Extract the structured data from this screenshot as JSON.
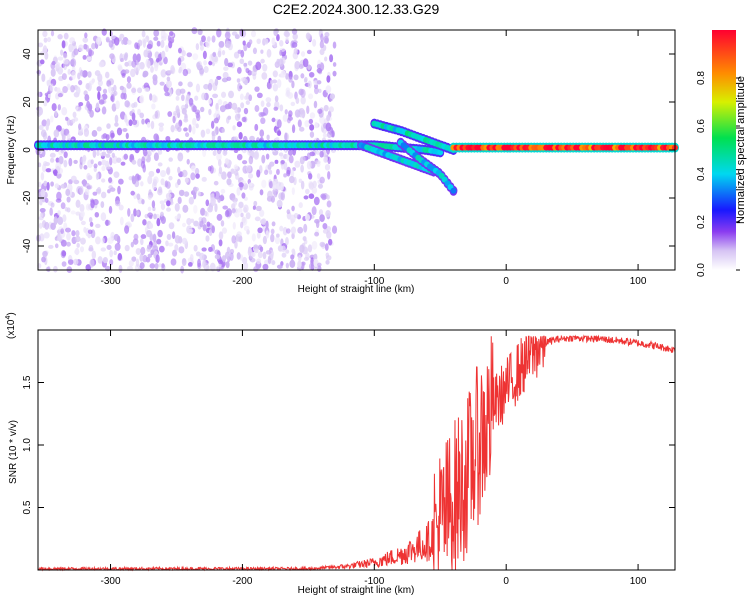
{
  "title": "C2E2.2024.300.12.33.G29",
  "chart_data": [
    {
      "type": "heatmap",
      "title": "C2E2.2024.300.12.33.G29",
      "xlabel": "Height of straight line (km)",
      "ylabel": "Frequency (Hz)",
      "xlim": [
        -355,
        128
      ],
      "ylim": [
        -50,
        50
      ],
      "xticks": [
        -300,
        -200,
        -100,
        0,
        100
      ],
      "yticks": [
        -40,
        -20,
        0,
        20,
        40
      ],
      "colorbar": {
        "label": "Normalized spectral amplitude",
        "range": [
          0,
          1
        ],
        "ticks": [
          "0.0",
          "0.2",
          "0.4",
          "0.6",
          "0.8"
        ],
        "colormap": "white-purple-blue-cyan-green-yellow-red"
      },
      "features": [
        {
          "name": "noise_region",
          "x_range": [
            -355,
            -130
          ],
          "freq_range": [
            -50,
            50
          ],
          "amplitude": 0.1
        },
        {
          "name": "main_trace",
          "x": [
            -355,
            -140,
            -120,
            -100,
            -80,
            -60,
            -50
          ],
          "freq": [
            2,
            2,
            2,
            2,
            1,
            0,
            -1
          ],
          "amplitude": 0.45
        },
        {
          "name": "descending_branch_1",
          "x": [
            -110,
            -90,
            -70,
            -55
          ],
          "freq": [
            2,
            -2,
            -6,
            -9
          ],
          "amplitude": 0.4
        },
        {
          "name": "descending_branch_2",
          "x": [
            -80,
            -65,
            -50,
            -40
          ],
          "freq": [
            3,
            -4,
            -10,
            -17
          ],
          "amplitude": 0.4
        },
        {
          "name": "upper_branch",
          "x": [
            -100,
            -80,
            -60,
            -40
          ],
          "freq": [
            11,
            8,
            4,
            0
          ],
          "amplitude": 0.45
        },
        {
          "name": "stable_trace",
          "x": [
            -40,
            0,
            50,
            100,
            128
          ],
          "freq": [
            1,
            1,
            1,
            1,
            1
          ],
          "amplitude": 0.95
        }
      ]
    },
    {
      "type": "line",
      "title": "",
      "xlabel": "Height of straight line (km)",
      "ylabel": "SNR (10 * v/v)",
      "multiplier": "(x10",
      "multiplier_exp": "4",
      "xlim": [
        -355,
        128
      ],
      "ylim": [
        0,
        1.92
      ],
      "xticks": [
        -300,
        -200,
        -100,
        0,
        100
      ],
      "yticks": [
        0.5,
        1.0,
        1.5
      ],
      "ytick_labels": [
        "0.5",
        "1.0",
        "1.5"
      ],
      "series": [
        {
          "color": "#ee3333",
          "x": [
            -355,
            -300,
            -250,
            -200,
            -150,
            -120,
            -100,
            -80,
            -60,
            -50,
            -40,
            -30,
            -25,
            -20,
            -15,
            -10,
            0,
            10,
            20,
            30,
            40,
            50,
            70,
            90,
            110,
            128
          ],
          "y": [
            0.01,
            0.01,
            0.01,
            0.01,
            0.01,
            0.03,
            0.06,
            0.12,
            0.22,
            0.35,
            0.55,
            0.75,
            0.9,
            1.05,
            1.15,
            1.3,
            1.45,
            1.6,
            1.74,
            1.82,
            1.85,
            1.86,
            1.85,
            1.83,
            1.8,
            1.76
          ]
        }
      ]
    }
  ]
}
